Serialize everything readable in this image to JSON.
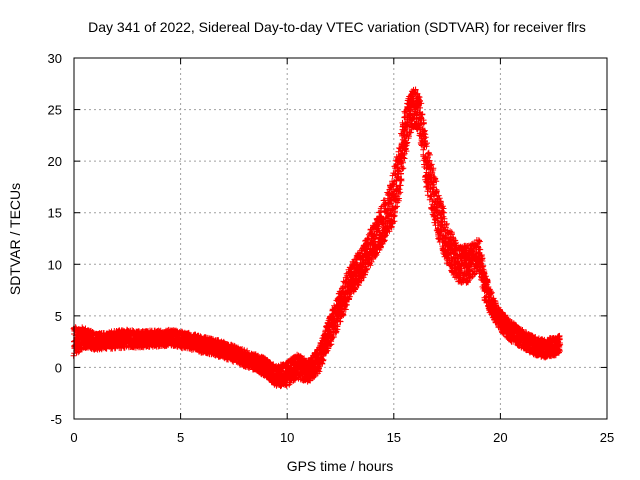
{
  "chart_data": {
    "type": "scatter",
    "title": "Day 341 of 2022, Sidereal Day-to-day VTEC variation (SDTVAR) for receiver flrs",
    "xlabel": "GPS time / hours",
    "ylabel": "SDTVAR / TECUs",
    "xlim": [
      0,
      25
    ],
    "ylim": [
      -5,
      30
    ],
    "xticks": [
      "0",
      "5",
      "10",
      "15",
      "20",
      "25"
    ],
    "yticks": [
      "-5",
      "0",
      "5",
      "10",
      "15",
      "20",
      "25",
      "30"
    ],
    "grid": true,
    "marker": "+",
    "series": [
      {
        "name": "SDTVAR",
        "color": "#ff0000",
        "x": [
          0.0,
          0.25,
          0.5,
          1.0,
          1.5,
          2.0,
          2.5,
          3.0,
          3.5,
          4.0,
          4.5,
          5.0,
          5.5,
          6.0,
          6.5,
          7.0,
          7.5,
          8.0,
          8.5,
          9.0,
          9.5,
          10.0,
          10.5,
          11.0,
          11.5,
          12.0,
          12.5,
          13.0,
          13.5,
          14.0,
          14.5,
          15.0,
          15.25,
          15.5,
          15.75,
          16.0,
          16.25,
          16.5,
          17.0,
          17.5,
          18.0,
          18.5,
          19.0,
          19.25,
          19.5,
          20.0,
          20.5,
          21.0,
          21.5,
          22.0,
          22.5,
          22.8
        ],
        "y": [
          2.5,
          2.7,
          2.9,
          2.5,
          2.6,
          2.7,
          2.8,
          2.7,
          2.8,
          2.8,
          2.9,
          2.7,
          2.5,
          2.2,
          2.0,
          1.7,
          1.3,
          0.9,
          0.5,
          0.0,
          -0.9,
          -0.6,
          0.1,
          -0.4,
          0.8,
          3.5,
          6.0,
          8.5,
          10.0,
          12.0,
          14.0,
          16.5,
          19.0,
          22.5,
          24.5,
          25.3,
          24.0,
          20.0,
          15.5,
          12.0,
          10.0,
          10.0,
          11.0,
          8.0,
          6.5,
          4.5,
          3.5,
          2.8,
          2.2,
          1.8,
          2.0,
          2.2
        ],
        "spread": [
          1.4,
          1.2,
          1.0,
          0.8,
          0.8,
          0.9,
          0.9,
          0.8,
          0.8,
          0.8,
          0.8,
          0.8,
          0.8,
          0.8,
          0.8,
          0.8,
          0.8,
          0.8,
          0.8,
          0.9,
          1.0,
          1.2,
          1.2,
          1.1,
          1.2,
          1.5,
          1.6,
          1.6,
          1.6,
          1.8,
          2.0,
          2.5,
          2.8,
          2.5,
          2.0,
          1.8,
          2.0,
          2.4,
          2.4,
          2.0,
          1.8,
          1.8,
          1.6,
          1.4,
          1.2,
          1.0,
          1.0,
          0.9,
          0.9,
          0.9,
          0.9,
          0.9
        ]
      }
    ]
  }
}
